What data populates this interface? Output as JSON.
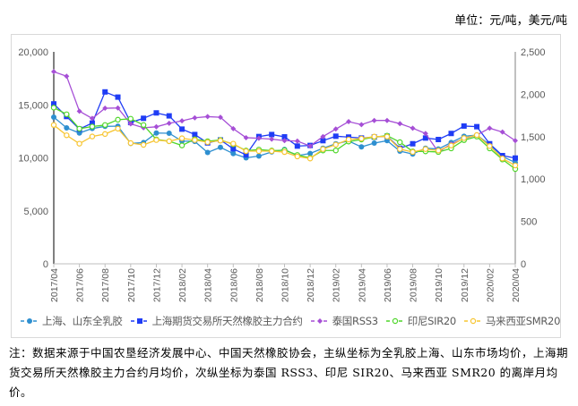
{
  "unit_label": "单位：元/吨，美元/吨",
  "note": "注：数据来源于中国农垦经济发展中心、中国天然橡胶协会，主纵坐标为全乳胶上海、山东市场均价，上海期货交易所天然橡胶主力合约月均价，次纵坐标为泰国 RSS3、印尼 SIR20、马来西亚 SMR20 的离岸月均价。",
  "chart_data": {
    "type": "line",
    "title": "",
    "x": [
      "2017/04",
      "2017/05",
      "2017/06",
      "2017/07",
      "2017/08",
      "2017/09",
      "2017/10",
      "2017/11",
      "2017/12",
      "2018/01",
      "2018/02",
      "2018/03",
      "2018/04",
      "2018/05",
      "2018/06",
      "2018/07",
      "2018/08",
      "2018/09",
      "2018/10",
      "2018/11",
      "2018/12",
      "2019/01",
      "2019/02",
      "2019/03",
      "2019/04",
      "2019/05",
      "2019/06",
      "2019/07",
      "2019/08",
      "2019/09",
      "2019/10",
      "2019/11",
      "2019/12",
      "2020/01",
      "2020/02",
      "2020/03",
      "2020/04"
    ],
    "x_tick_labels": [
      "2017/04",
      "2017/06",
      "2017/08",
      "2017/10",
      "2017/12",
      "2018/02",
      "2018/04",
      "2018/06",
      "2018/08",
      "2018/10",
      "2018/12",
      "2019/02",
      "2019/04",
      "2019/06",
      "2019/08",
      "2019/10",
      "2019/12",
      "2020/02",
      "2020/04"
    ],
    "y_left": {
      "min": 0,
      "max": 20000,
      "ticks": [
        "0",
        "5,000",
        "10,000",
        "15,000",
        "20,000"
      ]
    },
    "y_right": {
      "min": 0,
      "max": 2500,
      "ticks": [
        "0",
        "500",
        "1,000",
        "1,500",
        "2,000",
        "2,500"
      ]
    },
    "grid": false,
    "legend_position": "bottom",
    "series": [
      {
        "name": "上海、山东全乳胶",
        "axis": "left",
        "color": "#2e8fd0",
        "marker": "circle",
        "values": [
          13840,
          12830,
          12340,
          12770,
          12970,
          12990,
          11360,
          11440,
          12340,
          12320,
          11580,
          11550,
          10510,
          10990,
          10400,
          10000,
          10170,
          10560,
          10790,
          10210,
          10410,
          10910,
          11330,
          11590,
          11030,
          11390,
          11620,
          10630,
          10360,
          10910,
          10830,
          11450,
          12040,
          12150,
          11250,
          10130,
          9560
        ]
      },
      {
        "name": "上海期货交易所天然橡胶主力合约",
        "axis": "left",
        "color": "#1f3cf5",
        "marker": "square",
        "values": [
          15090,
          13900,
          12710,
          13280,
          16220,
          15730,
          13330,
          13730,
          14240,
          13960,
          12710,
          12200,
          11410,
          11690,
          10850,
          10280,
          12010,
          12200,
          11980,
          11110,
          11170,
          11620,
          12040,
          11960,
          11870,
          11960,
          12040,
          10910,
          11330,
          11870,
          11730,
          12300,
          13000,
          12940,
          11330,
          10210,
          9980
        ]
      },
      {
        "name": "泰国RSS3",
        "axis": "right",
        "color": "#a64fd6",
        "marker": "diamond",
        "values": [
          2266,
          2213,
          1800,
          1715,
          1835,
          1838,
          1651,
          1605,
          1616,
          1658,
          1686,
          1722,
          1736,
          1729,
          1594,
          1488,
          1481,
          1470,
          1453,
          1448,
          1389,
          1501,
          1590,
          1677,
          1642,
          1691,
          1691,
          1653,
          1600,
          1537,
          1319,
          1414,
          1477,
          1519,
          1600,
          1554,
          1453
        ]
      },
      {
        "name": "印尼SIR20",
        "axis": "right",
        "color": "#4fd62a",
        "marker": "open-circle",
        "values": [
          1842,
          1764,
          1594,
          1619,
          1637,
          1700,
          1711,
          1637,
          1467,
          1446,
          1396,
          1470,
          1446,
          1460,
          1410,
          1336,
          1347,
          1336,
          1340,
          1284,
          1248,
          1337,
          1337,
          1442,
          1466,
          1495,
          1512,
          1435,
          1326,
          1326,
          1319,
          1361,
          1459,
          1501,
          1361,
          1231,
          1118
        ]
      },
      {
        "name": "马来西亚SMR20",
        "axis": "right",
        "color": "#f7c531",
        "marker": "open-circle",
        "values": [
          1637,
          1516,
          1417,
          1502,
          1531,
          1594,
          1424,
          1403,
          1460,
          1446,
          1481,
          1460,
          1435,
          1453,
          1417,
          1329,
          1329,
          1329,
          1318,
          1266,
          1242,
          1353,
          1406,
          1466,
          1477,
          1501,
          1501,
          1353,
          1319,
          1353,
          1336,
          1396,
          1484,
          1519,
          1389,
          1242,
          1160
        ]
      }
    ]
  }
}
